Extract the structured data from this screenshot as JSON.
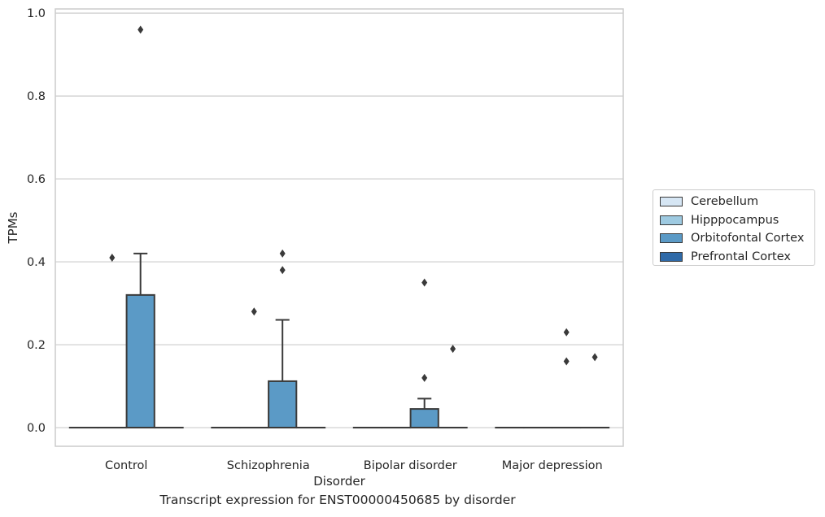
{
  "chart_data": {
    "type": "box",
    "xlabel": "Disorder",
    "ylabel": "TPMs",
    "caption": "Transcript expression for ENST00000450685 by disorder",
    "categories": [
      "Control",
      "Schizophrenia",
      "Bipolar disorder",
      "Major depression"
    ],
    "ylim": [
      -0.045,
      1.01
    ],
    "yticks": [
      0.0,
      0.2,
      0.4,
      0.6,
      0.8,
      1.0
    ],
    "ytick_labels": [
      "0.0",
      "0.2",
      "0.4",
      "0.6",
      "0.8",
      "1.0"
    ],
    "grid": "horizontal",
    "legend_position": "right",
    "series": [
      {
        "name": "Cerebellum",
        "color": "#d6e6f4",
        "boxes": [
          {
            "q1": 0,
            "median": 0,
            "q3": 0,
            "whisker_low": 0,
            "whisker_high": 0,
            "outliers": []
          },
          {
            "q1": 0,
            "median": 0,
            "q3": 0,
            "whisker_low": 0,
            "whisker_high": 0,
            "outliers": []
          },
          {
            "q1": 0,
            "median": 0,
            "q3": 0,
            "whisker_low": 0,
            "whisker_high": 0,
            "outliers": []
          },
          {
            "q1": 0,
            "median": 0,
            "q3": 0,
            "whisker_low": 0,
            "whisker_high": 0,
            "outliers": []
          }
        ]
      },
      {
        "name": "Hipppocampus",
        "color": "#9ecae1",
        "boxes": [
          {
            "q1": 0,
            "median": 0,
            "q3": 0,
            "whisker_low": 0,
            "whisker_high": 0,
            "outliers": [
              0.41
            ]
          },
          {
            "q1": 0,
            "median": 0,
            "q3": 0,
            "whisker_low": 0,
            "whisker_high": 0,
            "outliers": [
              0.28
            ]
          },
          {
            "q1": 0,
            "median": 0,
            "q3": 0,
            "whisker_low": 0,
            "whisker_high": 0,
            "outliers": []
          },
          {
            "q1": 0,
            "median": 0,
            "q3": 0,
            "whisker_low": 0,
            "whisker_high": 0,
            "outliers": []
          }
        ]
      },
      {
        "name": "Orbitofontal Cortex",
        "color": "#5b9ac6",
        "boxes": [
          {
            "q1": 0,
            "median": 0,
            "q3": 0.32,
            "whisker_low": 0,
            "whisker_high": 0.42,
            "outliers": [
              0.96
            ]
          },
          {
            "q1": 0,
            "median": 0,
            "q3": 0.112,
            "whisker_low": 0,
            "whisker_high": 0.26,
            "outliers": [
              0.38,
              0.42
            ]
          },
          {
            "q1": 0,
            "median": 0,
            "q3": 0.045,
            "whisker_low": 0,
            "whisker_high": 0.07,
            "outliers": [
              0.12,
              0.35
            ]
          },
          {
            "q1": 0,
            "median": 0,
            "q3": 0,
            "whisker_low": 0,
            "whisker_high": 0,
            "outliers": [
              0.16,
              0.23
            ]
          }
        ]
      },
      {
        "name": "Prefrontal Cortex",
        "color": "#2f6aa8",
        "boxes": [
          {
            "q1": 0,
            "median": 0,
            "q3": 0,
            "whisker_low": 0,
            "whisker_high": 0,
            "outliers": []
          },
          {
            "q1": 0,
            "median": 0,
            "q3": 0,
            "whisker_low": 0,
            "whisker_high": 0,
            "outliers": []
          },
          {
            "q1": 0,
            "median": 0,
            "q3": 0,
            "whisker_low": 0,
            "whisker_high": 0,
            "outliers": [
              0.19
            ]
          },
          {
            "q1": 0,
            "median": 0,
            "q3": 0,
            "whisker_low": 0,
            "whisker_high": 0,
            "outliers": [
              0.17
            ]
          }
        ]
      }
    ]
  }
}
